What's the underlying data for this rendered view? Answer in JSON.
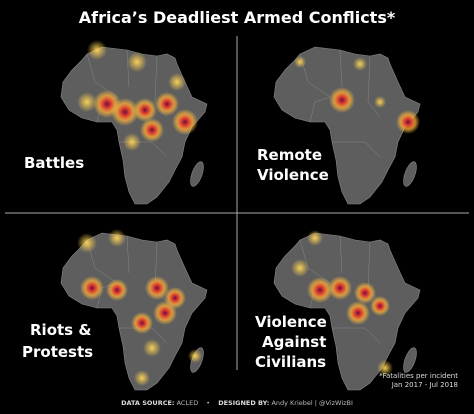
{
  "title": "Africa’s Deadliest Armed Conflicts*",
  "panels": [
    {
      "label_lines": [
        "Battles"
      ]
    },
    {
      "label_lines": [
        "Remote",
        "Violence"
      ]
    },
    {
      "label_lines": [
        "Riots &",
        "Protests"
      ]
    },
    {
      "label_lines": [
        "Violence",
        "Against",
        "Civilians"
      ]
    }
  ],
  "note": {
    "lines": [
      "*Fatalities per incident",
      "Jan 2017 - Jul 2018"
    ]
  },
  "footer": {
    "source_label": "DATA SOURCE:",
    "source": "ACLED",
    "separator": "•",
    "designed_label": "DESIGNED BY:",
    "designer": "Andy Kriebel | @VizWizBI"
  }
}
